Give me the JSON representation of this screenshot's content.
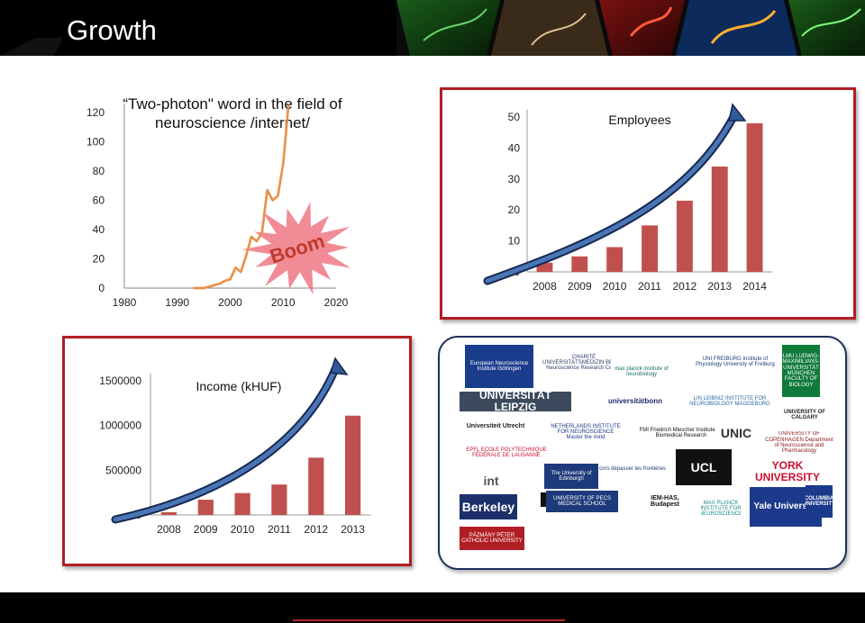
{
  "slide": {
    "title": "Growth"
  },
  "chart_data": [
    {
      "type": "line",
      "title": "“Two-photon\" word in the field of neuroscience /internet/",
      "x": [
        1993,
        1994,
        1995,
        1996,
        1997,
        1998,
        1999,
        2000,
        2001,
        2002,
        2003,
        2004,
        2005,
        2006,
        2007,
        2008,
        2009,
        2010,
        2011
      ],
      "series": [
        {
          "values": [
            0,
            0,
            0,
            1,
            2,
            3,
            5,
            6,
            14,
            11,
            22,
            35,
            32,
            38,
            67,
            60,
            63,
            85,
            125
          ]
        }
      ],
      "xticks": [
        1980,
        1990,
        2000,
        2010,
        2020
      ],
      "yticks": [
        0,
        20,
        40,
        60,
        80,
        100,
        120
      ],
      "xlim": [
        1980,
        2020
      ],
      "ylim": [
        0,
        120
      ],
      "color": "#e8914a",
      "annotation": "Boom"
    },
    {
      "type": "bar",
      "title": "Employees",
      "categories": [
        "2008",
        "2009",
        "2010",
        "2011",
        "2012",
        "2013",
        "2014"
      ],
      "values": [
        3,
        5,
        8,
        15,
        23,
        34,
        48
      ],
      "yticks": [
        0,
        10,
        20,
        30,
        40,
        50
      ],
      "ylim": [
        0,
        50
      ],
      "color": "#c0504d"
    },
    {
      "type": "bar",
      "title": "Income (kHUF)",
      "categories": [
        "2008",
        "2009",
        "2010",
        "2011",
        "2012",
        "2013"
      ],
      "values": [
        30000,
        170000,
        245000,
        340000,
        640000,
        1110000
      ],
      "yticks": [
        0,
        500000,
        1000000,
        1500000
      ],
      "ylim": [
        0,
        1500000
      ],
      "color": "#c0504d"
    }
  ],
  "partners": {
    "logos": [
      {
        "text": "European Neuroscience Institute Göttingen",
        "bg": "#1a3c8c",
        "fg": "#ffffff"
      },
      {
        "text": "CHARITÉ UNIVERSITÄTSMEDIZIN BERLIN Neuroscience Research Center",
        "bg": "#ffffff",
        "fg": "#2a3e6c"
      },
      {
        "text": "max planck institute of neurobiology",
        "bg": "#ffffff",
        "fg": "#1a6b6b"
      },
      {
        "text": "UNI FREIBURG Institute of Physiology University of Freiburg",
        "bg": "#ffffff",
        "fg": "#1a3f7a"
      },
      {
        "text": "LMU LUDWIG-MAXIMILIANS-UNIVERSITÄT MÜNCHEN FACULTY OF BIOLOGY",
        "bg": "#0f7a3a",
        "fg": "#ffffff"
      },
      {
        "text": "UNIVERSITÄT LEIPZIG",
        "bg": "#3b4a5c",
        "fg": "#ffffff"
      },
      {
        "text": "universitätbonn",
        "bg": "#ffffff",
        "fg": "#1e2f6a"
      },
      {
        "text": "LIN LEIBNIZ INSTITUTE FOR NEUROBIOLOGY MAGDEBURG",
        "bg": "#ffffff",
        "fg": "#2a6aa8"
      },
      {
        "text": "UNIVERSITY OF CALGARY",
        "bg": "#ffffff",
        "fg": "#222222"
      },
      {
        "text": "Universiteit Utrecht",
        "bg": "#ffffff",
        "fg": "#222222"
      },
      {
        "text": "NETHERLANDS INSTITUTE FOR NEUROSCIENCE Master the mind",
        "bg": "#ffffff",
        "fg": "#1c3b8c"
      },
      {
        "text": "FMI Friedrich Miescher Institute for Biomedical Research",
        "bg": "#ffffff",
        "fg": "#111111"
      },
      {
        "text": "UNIC",
        "bg": "#ffffff",
        "fg": "#333333"
      },
      {
        "text": "UNIVERSITY OF COPENHAGEN Department of Neuroscience and Pharmacology",
        "bg": "#ffffff",
        "fg": "#8a1a1a"
      },
      {
        "text": "EPFL ECOLE POLYTECHNIQUE FÉDÉRALE DE LAUSANNE",
        "bg": "#ffffff",
        "fg": "#c8102e"
      },
      {
        "text": "cnrs dépasser les frontières",
        "bg": "#ffffff",
        "fg": "#1b3a6b"
      },
      {
        "text": "UCL",
        "bg": "#111111",
        "fg": "#ffffff"
      },
      {
        "text": "YORK UNIVERSITY",
        "bg": "#ffffff",
        "fg": "#c8102e"
      },
      {
        "text": "int",
        "bg": "#ffffff",
        "fg": "#555555"
      },
      {
        "text": "The University of Edinburgh",
        "bg": "#1d3a7a",
        "fg": "#ffffff"
      },
      {
        "text": "MELBOURNE BRAIN CENTRE",
        "bg": "#111111",
        "fg": "#ffffff"
      },
      {
        "text": "Berkeley",
        "bg": "#1b2f6a",
        "fg": "#ffffff"
      },
      {
        "text": "UNIVERSITY OF PECS MEDICAL SCHOOL",
        "bg": "#1d3a7a",
        "fg": "#ffffff"
      },
      {
        "text": "IEM-HAS, Budapest",
        "bg": "#ffffff",
        "fg": "#111111"
      },
      {
        "text": "MAX PLANCK INSTITUTE FOR NEUROSCIENCE",
        "bg": "#ffffff",
        "fg": "#1a8a8a"
      },
      {
        "text": "Yale University",
        "bg": "#1b3a8c",
        "fg": "#ffffff"
      },
      {
        "text": "COLUMBIA UNIVERSITY",
        "bg": "#1b3a8c",
        "fg": "#ffffff"
      },
      {
        "text": "PÁZMÁNY PÉTER CATHOLIC UNIVERSITY",
        "bg": "#b01e23",
        "fg": "#ffffff"
      }
    ]
  }
}
